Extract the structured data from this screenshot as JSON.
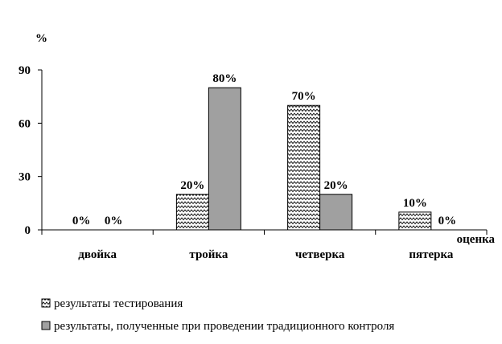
{
  "chart_data": {
    "type": "bar",
    "ylabel": "%",
    "xlabel": "оценка",
    "ylim": [
      0,
      90
    ],
    "yticks": [
      "0",
      "30",
      "60",
      "90"
    ],
    "categories": [
      "двойка",
      "тройка",
      "четверка",
      "пятерка"
    ],
    "series": [
      {
        "name": "результаты тестирования",
        "values": [
          0,
          20,
          70,
          10
        ],
        "labels": [
          "0%",
          "20%",
          "70%",
          "10%"
        ],
        "fill": "zigzag-pattern",
        "color": "#ffffff"
      },
      {
        "name": "результаты, полученные при проведении традиционного контроля",
        "values": [
          0,
          80,
          20,
          0
        ],
        "labels": [
          "0%",
          "80%",
          "20%",
          "0%"
        ],
        "fill": "solid",
        "color": "#a0a0a0"
      }
    ],
    "grid": false,
    "legend_position": "bottom-left"
  }
}
